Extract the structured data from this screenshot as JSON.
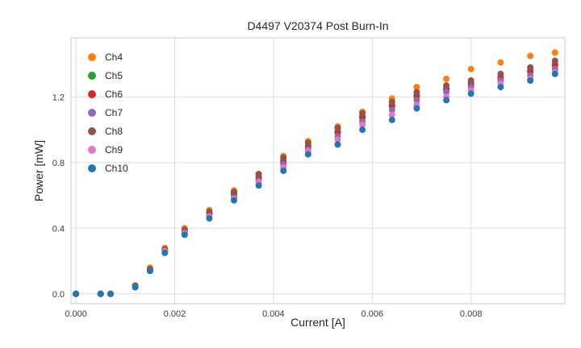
{
  "chart_data": {
    "type": "scatter",
    "title": "D4497 V20374 Post Burn-In",
    "xlabel": "Current [A]",
    "ylabel": "Power [mW]",
    "xlim": [
      -0.0001,
      0.0099
    ],
    "ylim": [
      -0.06,
      1.56
    ],
    "xticks": [
      0.0,
      0.002,
      0.004,
      0.006,
      0.008
    ],
    "xtick_labels": [
      "0.000",
      "0.002",
      "0.004",
      "0.006",
      "0.008"
    ],
    "yticks": [
      0.0,
      0.4,
      0.8,
      1.2
    ],
    "ytick_labels": [
      "0.0",
      "0.4",
      "0.8",
      "1.2"
    ],
    "grid": true,
    "grid_color": "#dcdce4",
    "border_color": "#c8c8d0",
    "legend_position": "upper left",
    "x": [
      0.0,
      0.0005,
      0.0007,
      0.0012,
      0.0015,
      0.0018,
      0.0022,
      0.0027,
      0.0032,
      0.0037,
      0.0042,
      0.0047,
      0.0053,
      0.0058,
      0.0064,
      0.0069,
      0.0075,
      0.008,
      0.0086,
      0.0092,
      0.0097
    ],
    "series": [
      {
        "name": "Ch4",
        "color": "#ff7f0e",
        "values": [
          0.0,
          0.0,
          0.0,
          0.05,
          0.16,
          0.28,
          0.4,
          0.51,
          0.63,
          0.73,
          0.84,
          0.93,
          1.02,
          1.11,
          1.19,
          1.26,
          1.31,
          1.37,
          1.41,
          1.45,
          1.47
        ]
      },
      {
        "name": "Ch5",
        "color": "#2ca02c",
        "values": [
          0.0,
          0.0,
          0.0,
          0.05,
          0.15,
          0.26,
          0.38,
          0.49,
          0.6,
          0.7,
          0.8,
          0.89,
          0.98,
          1.07,
          1.14,
          1.2,
          1.24,
          1.27,
          1.31,
          1.35,
          1.39
        ]
      },
      {
        "name": "Ch6",
        "color": "#d62728",
        "values": [
          0.0,
          0.0,
          0.0,
          0.05,
          0.15,
          0.27,
          0.38,
          0.49,
          0.61,
          0.71,
          0.81,
          0.9,
          0.99,
          1.08,
          1.15,
          1.21,
          1.25,
          1.28,
          1.32,
          1.36,
          1.4
        ]
      },
      {
        "name": "Ch7",
        "color": "#9467bd",
        "values": [
          0.0,
          0.0,
          0.0,
          0.04,
          0.15,
          0.26,
          0.37,
          0.48,
          0.59,
          0.69,
          0.79,
          0.88,
          0.96,
          1.05,
          1.12,
          1.18,
          1.23,
          1.26,
          1.3,
          1.33,
          1.37
        ]
      },
      {
        "name": "Ch8",
        "color": "#8c564b",
        "values": [
          0.0,
          0.0,
          0.0,
          0.05,
          0.15,
          0.27,
          0.39,
          0.5,
          0.62,
          0.73,
          0.83,
          0.92,
          1.01,
          1.1,
          1.17,
          1.23,
          1.27,
          1.3,
          1.34,
          1.38,
          1.42
        ]
      },
      {
        "name": "Ch9",
        "color": "#e377c2",
        "values": [
          0.0,
          0.0,
          0.0,
          0.04,
          0.14,
          0.26,
          0.37,
          0.47,
          0.58,
          0.68,
          0.77,
          0.87,
          0.94,
          1.03,
          1.09,
          1.15,
          1.2,
          1.24,
          1.28,
          1.31,
          1.35
        ]
      },
      {
        "name": "Ch10",
        "color": "#1f77b4",
        "values": [
          0.0,
          0.0,
          0.0,
          0.04,
          0.14,
          0.25,
          0.36,
          0.46,
          0.57,
          0.66,
          0.75,
          0.85,
          0.91,
          1.0,
          1.06,
          1.13,
          1.18,
          1.22,
          1.26,
          1.3,
          1.34
        ]
      }
    ]
  }
}
